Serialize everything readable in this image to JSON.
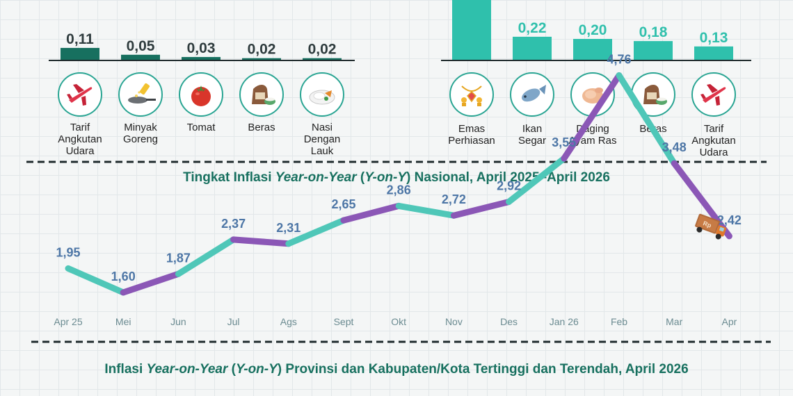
{
  "colors": {
    "dark_teal": "#17705f",
    "teal": "#2fc0ac",
    "line_teal": "#4fc7b8",
    "line_purple": "#8b57b6",
    "title": "#17705f",
    "value_blue": "#4d76a6",
    "month_gray": "#6b8b91"
  },
  "chart_data": [
    {
      "type": "bar",
      "categories": [
        "Tarif Angkutan Udara",
        "Minyak Goreng",
        "Tomat",
        "Beras",
        "Nasi Dengan Lauk"
      ],
      "values": [
        0.11,
        0.05,
        0.03,
        0.02,
        0.02
      ],
      "data_labels": [
        "0,11",
        "0,05",
        "0,03",
        "0,02",
        "0,02"
      ],
      "label_lines": [
        [
          "Tarif",
          "Angkutan",
          "Udara"
        ],
        [
          "Minyak",
          "Goreng"
        ],
        [
          "Tomat"
        ],
        [
          "Beras"
        ],
        [
          "Nasi",
          "Dengan",
          "Lauk"
        ]
      ],
      "icons": [
        "airplane-icon",
        "frying-pan-icon",
        "tomato-icon",
        "rice-sack-icon",
        "rice-plate-icon"
      ],
      "color": "#17705f"
    },
    {
      "type": "bar",
      "categories": [
        "Emas Perhiasan",
        "Ikan Segar",
        "Daging Ayam Ras",
        "Beras",
        "Tarif Angkutan Udara"
      ],
      "values": [
        0.6,
        0.22,
        0.2,
        0.18,
        0.13
      ],
      "data_labels": [
        "",
        "0,22",
        "0,20",
        "0,18",
        "0,13"
      ],
      "label_lines": [
        [
          "Emas",
          "Perhiasan"
        ],
        [
          "Ikan",
          "Segar"
        ],
        [
          "Daging",
          "Ayam Ras"
        ],
        [
          "Beras"
        ],
        [
          "Tarif",
          "Angkutan",
          "Udara"
        ]
      ],
      "icons": [
        "gold-jewelry-icon",
        "fish-icon",
        "chicken-meat-icon",
        "rice-sack-icon",
        "airplane-icon"
      ],
      "color": "#2fc0ac"
    },
    {
      "type": "line",
      "title_parts": [
        "Tingkat Inflasi ",
        "Year-on-Year",
        " (",
        "Y-on-Y",
        ") Nasional, April 2025–April 2026"
      ],
      "categories": [
        "Apr 25",
        "Mei",
        "Jun",
        "Jul",
        "Ags",
        "Sept",
        "Okt",
        "Nov",
        "Des",
        "Jan 26",
        "Feb",
        "Mar",
        "Apr"
      ],
      "values": [
        1.95,
        1.6,
        1.87,
        2.37,
        2.31,
        2.65,
        2.86,
        2.72,
        2.92,
        3.55,
        4.76,
        3.48,
        2.42
      ],
      "data_labels": [
        "1,95",
        "1,60",
        "1,87",
        "2,37",
        "2,31",
        "2,65",
        "2,86",
        "2,72",
        "2,92",
        "3,55",
        "4,76",
        "3,48",
        "2,42"
      ]
    }
  ],
  "bottom_title_parts": [
    "Inflasi ",
    "Year-on-Year",
    " (",
    "Y-on-Y",
    ") Provinsi dan Kabupaten/Kota Tertinggi dan Terendah, April 2026"
  ],
  "truck_label": "Rp"
}
